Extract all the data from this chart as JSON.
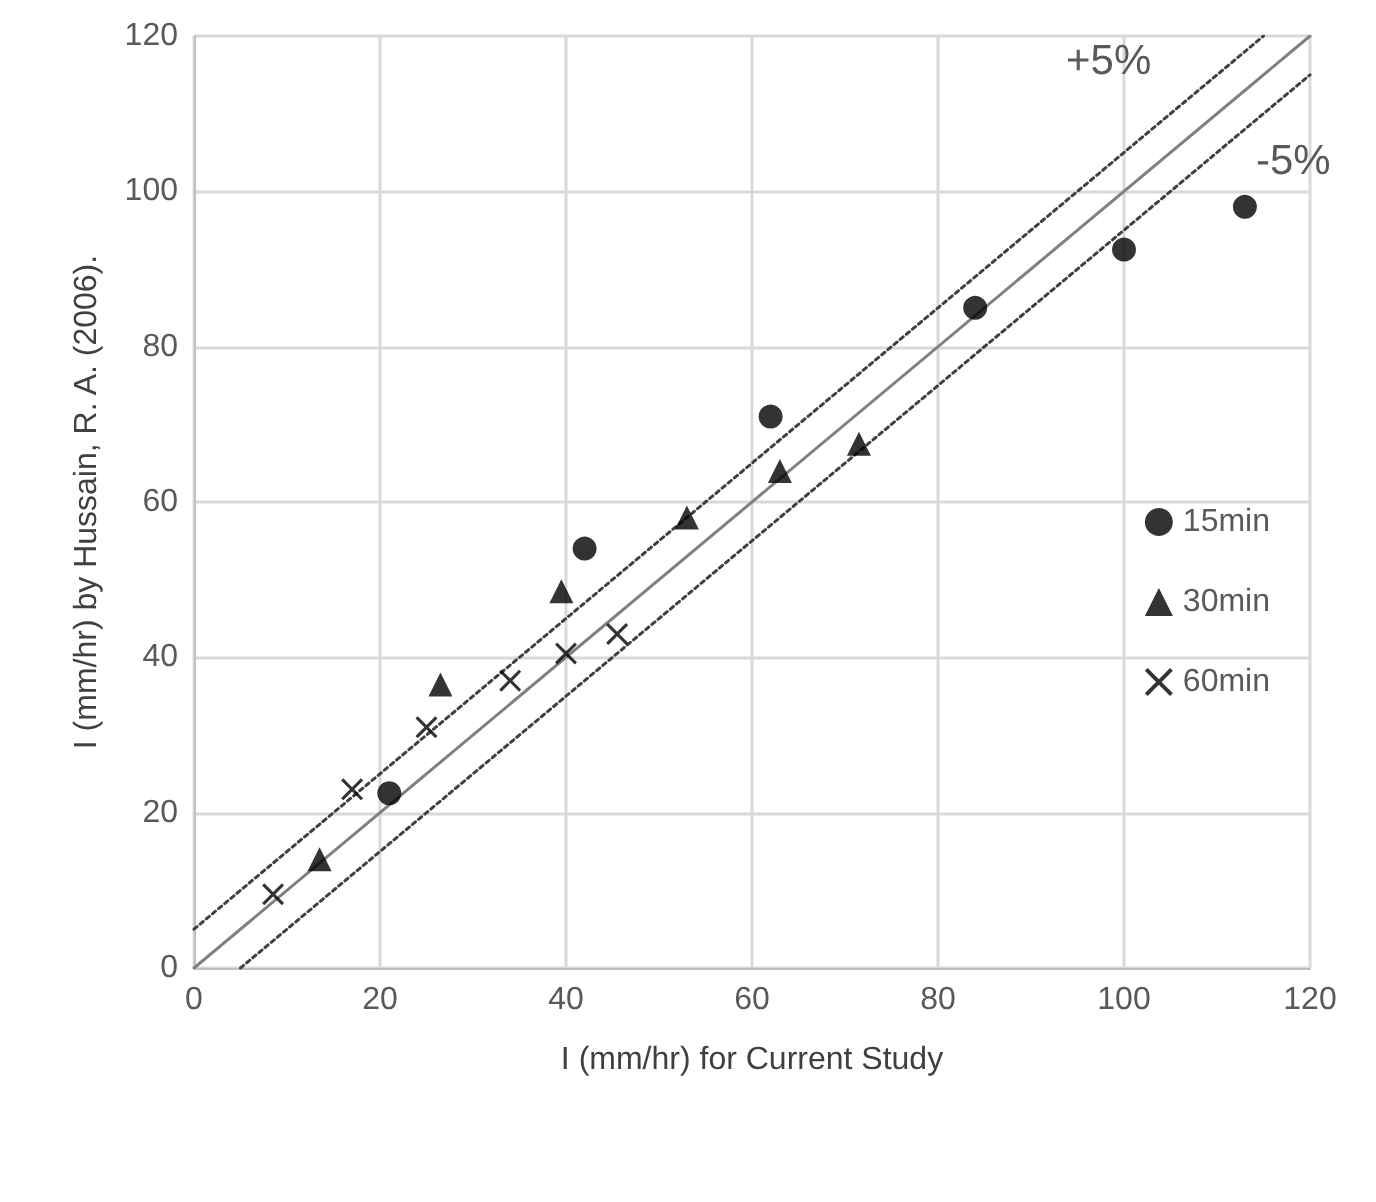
{
  "chart_data": {
    "type": "scatter",
    "xlabel": "I (mm/hr) for Current Study",
    "ylabel": "I (mm/hr) by Hussain, R. A. (2006).",
    "xlim": [
      0,
      120
    ],
    "ylim": [
      0,
      120
    ],
    "xticks": [
      0,
      20,
      40,
      60,
      80,
      100,
      120
    ],
    "yticks": [
      0,
      20,
      40,
      60,
      80,
      100,
      120
    ],
    "grid": true,
    "legend": "right",
    "series": [
      {
        "name": "15min",
        "color": "#000000",
        "marker": "circle",
        "x": [
          21,
          42,
          62,
          84,
          100,
          113
        ],
        "values": [
          22.5,
          54,
          71,
          85,
          92.5,
          98
        ]
      },
      {
        "name": "30min",
        "color": "#000000",
        "marker": "triangle",
        "x": [
          13.5,
          26.5,
          39.5,
          53,
          63,
          71.5
        ],
        "values": [
          14,
          36.5,
          48.5,
          58,
          64,
          67.5
        ]
      },
      {
        "name": "60min",
        "color": "#000000",
        "marker": "cross",
        "x": [
          8.5,
          17,
          25,
          34,
          40,
          45.5
        ],
        "values": [
          9.5,
          23,
          31,
          37,
          40.5,
          43
        ]
      },
      {
        "type": "line",
        "color": "#808080",
        "line_style": "solid",
        "x": [
          0,
          120
        ],
        "values": [
          0,
          120
        ]
      },
      {
        "type": "line",
        "color": "#404040",
        "line_style": "dotted",
        "x": [
          0,
          115
        ],
        "values": [
          5,
          120
        ]
      },
      {
        "type": "line",
        "color": "#404040",
        "line_style": "dotted",
        "x": [
          5,
          120
        ],
        "values": [
          0,
          115
        ]
      }
    ],
    "annotations": [
      "+5%",
      "-5%"
    ]
  }
}
